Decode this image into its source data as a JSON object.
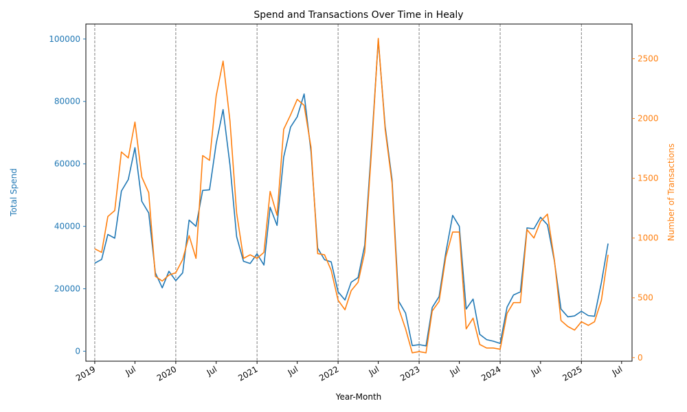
{
  "chart_data": {
    "type": "line",
    "title": "Spend and Transactions Over Time in Healy",
    "xlabel": "Year-Month",
    "ylabel_left": "Total Spend",
    "ylabel_right": "Number of Transactions",
    "colors": {
      "spend": "#1f77b4",
      "transactions": "#ff7f0e",
      "vline": "#808080"
    },
    "x_start": "2019-01",
    "x_end": "2025-08",
    "xlim": [
      "2018-11-22",
      "2025-08-17"
    ],
    "y_left_lim": [
      -3200,
      104800
    ],
    "y_right_lim": [
      -30,
      2790
    ],
    "x_ticks": [
      {
        "date": "2019-01",
        "label": "2019"
      },
      {
        "date": "2019-07",
        "label": "Jul"
      },
      {
        "date": "2020-01",
        "label": "2020"
      },
      {
        "date": "2020-07",
        "label": "Jul"
      },
      {
        "date": "2021-01",
        "label": "2021"
      },
      {
        "date": "2021-07",
        "label": "Jul"
      },
      {
        "date": "2022-01",
        "label": "2022"
      },
      {
        "date": "2022-07",
        "label": "Jul"
      },
      {
        "date": "2023-01",
        "label": "2023"
      },
      {
        "date": "2023-07",
        "label": "Jul"
      },
      {
        "date": "2024-01",
        "label": "2024"
      },
      {
        "date": "2024-07",
        "label": "Jul"
      },
      {
        "date": "2025-01",
        "label": "2025"
      },
      {
        "date": "2025-07",
        "label": "Jul"
      }
    ],
    "y_left_ticks": [
      0,
      20000,
      40000,
      60000,
      80000,
      100000
    ],
    "y_right_ticks": [
      0,
      500,
      1000,
      1500,
      2000,
      2500
    ],
    "year_lines": [
      "2019-01",
      "2020-01",
      "2021-01",
      "2022-01",
      "2023-01",
      "2024-01",
      "2025-01"
    ],
    "series": [
      {
        "name": "Total Spend",
        "axis": "left",
        "values": [
          28200,
          29400,
          37400,
          36200,
          51300,
          55000,
          65200,
          48000,
          44300,
          25100,
          20300,
          25600,
          22600,
          25100,
          42000,
          40000,
          51500,
          51700,
          66500,
          77400,
          59700,
          36700,
          28800,
          28100,
          31200,
          27600,
          46100,
          40300,
          62200,
          71800,
          75100,
          82400,
          63900,
          33000,
          29300,
          28600,
          19000,
          16400,
          22100,
          23600,
          34000,
          66300,
          99600,
          72000,
          55000,
          16000,
          12200,
          1800,
          2100,
          1700,
          14000,
          17500,
          31500,
          43500,
          40000,
          13500,
          16700,
          5400,
          3700,
          3200,
          2500,
          14100,
          18000,
          19000,
          39500,
          39200,
          42900,
          40500,
          29000,
          13500,
          11000,
          11300,
          12800,
          11400,
          11200,
          22000,
          34500
        ]
      },
      {
        "name": "Number of Transactions",
        "axis": "right",
        "values": [
          910,
          880,
          1180,
          1230,
          1720,
          1670,
          1970,
          1510,
          1380,
          680,
          640,
          690,
          710,
          820,
          1020,
          830,
          1690,
          1650,
          2190,
          2480,
          1980,
          1210,
          830,
          860,
          830,
          880,
          1390,
          1190,
          1910,
          2030,
          2160,
          2110,
          1760,
          870,
          860,
          730,
          480,
          400,
          560,
          630,
          880,
          1740,
          2670,
          1910,
          1460,
          410,
          240,
          40,
          50,
          40,
          390,
          470,
          840,
          1050,
          1050,
          240,
          330,
          110,
          80,
          80,
          70,
          370,
          460,
          460,
          1070,
          1000,
          1140,
          1200,
          820,
          310,
          260,
          230,
          300,
          270,
          300,
          480,
          860
        ]
      }
    ]
  }
}
